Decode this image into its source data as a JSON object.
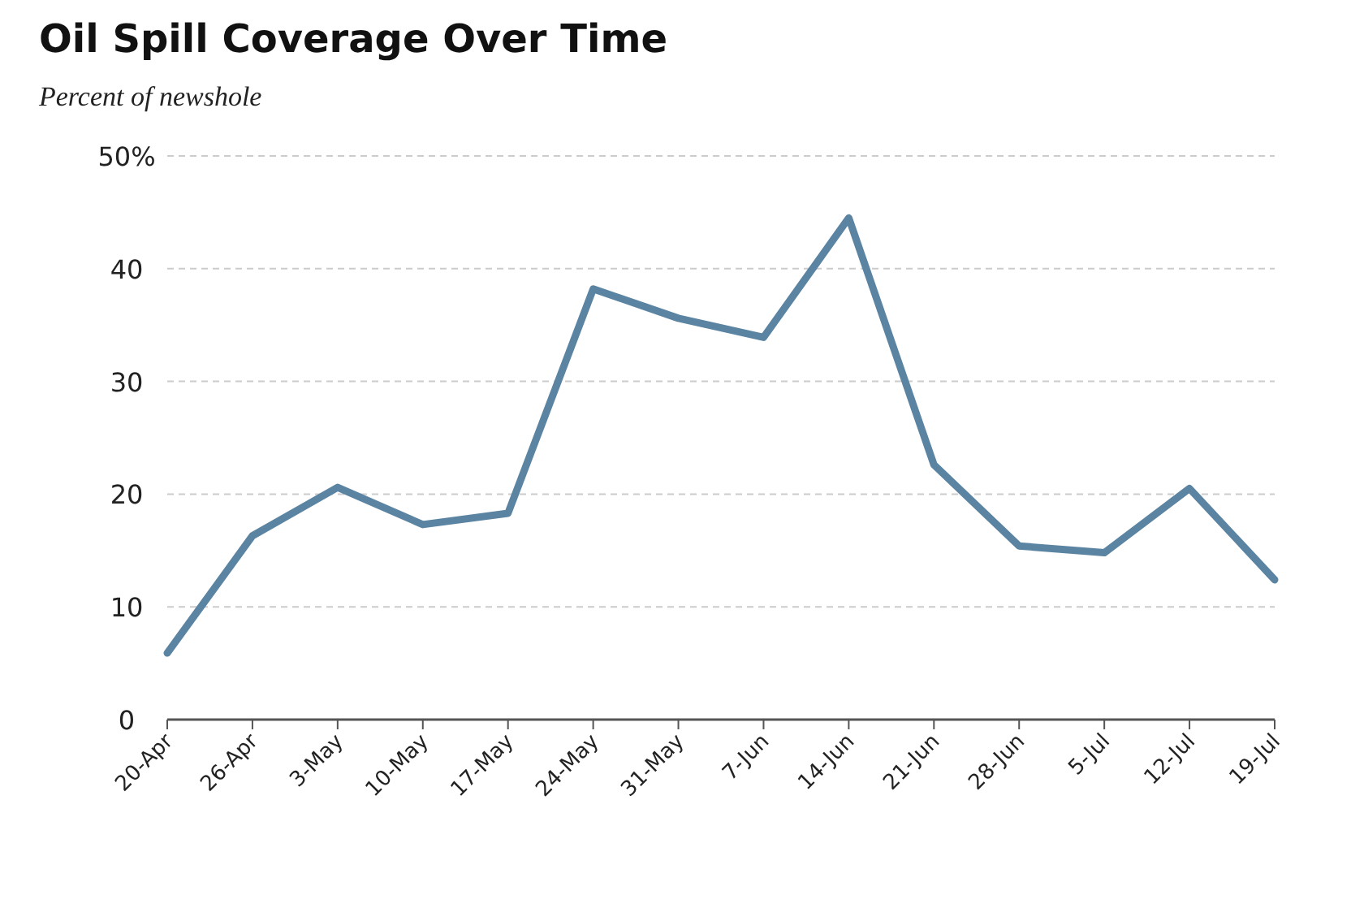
{
  "chart_data": {
    "type": "line",
    "title": "Oil Spill Coverage Over Time",
    "subtitle": "Percent of newshole",
    "categories": [
      "20-Apr",
      "26-Apr",
      "3-May",
      "10-May",
      "17-May",
      "24-May",
      "31-May",
      "7-Jun",
      "14-Jun",
      "21-Jun",
      "28-Jun",
      "5-Jul",
      "12-Jul",
      "19-Jul"
    ],
    "series": [
      {
        "color": "#5b84a2",
        "values": [
          5.9,
          16.3,
          20.6,
          17.3,
          18.3,
          38.2,
          35.6,
          33.9,
          44.5,
          22.6,
          15.4,
          14.8,
          20.5,
          12.4
        ]
      }
    ],
    "ylim": [
      0,
      50
    ],
    "yticks": [
      0,
      10,
      20,
      30,
      40,
      {
        "value": 50,
        "label": "50%"
      }
    ],
    "grid": "y",
    "marker": "none",
    "line_style": "solid"
  }
}
